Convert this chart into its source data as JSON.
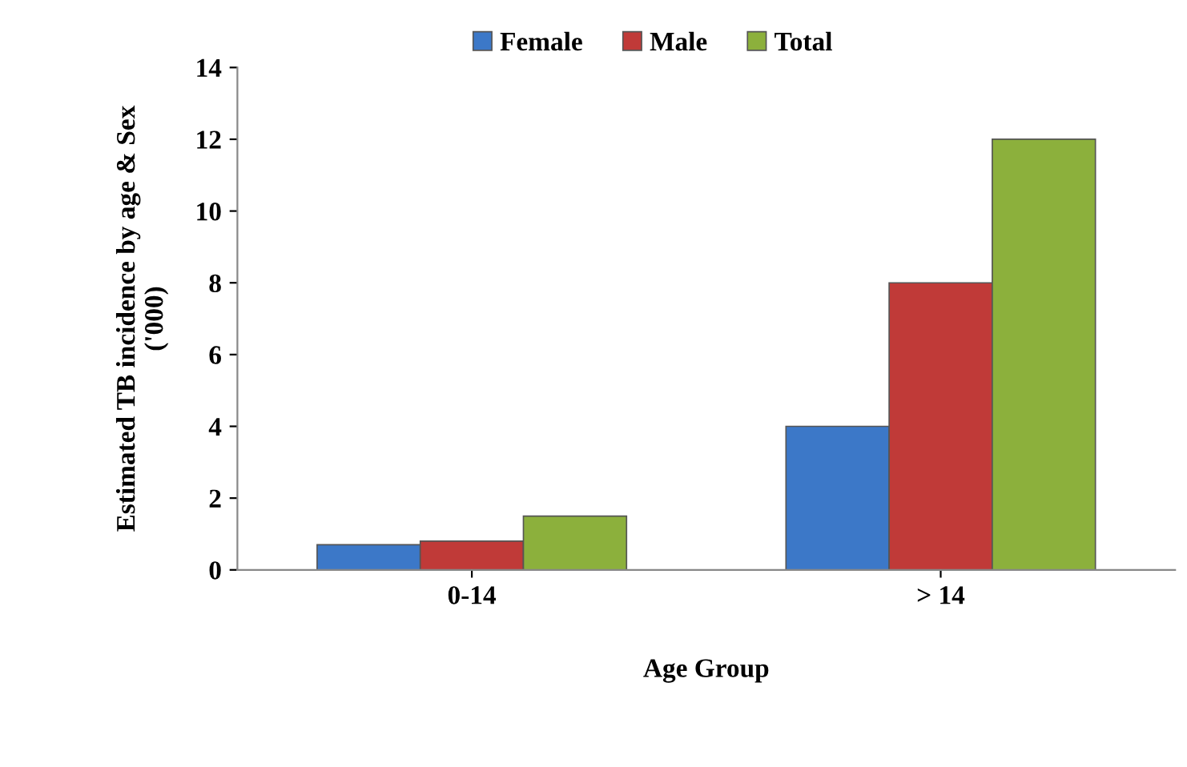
{
  "chart_data": {
    "type": "bar",
    "xlabel": "Age Group",
    "ylabel": "Estimated TB incidence by age & Sex\n('000)",
    "categories": [
      "0-14",
      "> 14"
    ],
    "series": [
      {
        "name": "Female",
        "color": "#3c78c8",
        "values": [
          0.7,
          4
        ]
      },
      {
        "name": "Male",
        "color": "#c03a38",
        "values": [
          0.8,
          8
        ]
      },
      {
        "name": "Total",
        "color": "#8cb03c",
        "values": [
          1.5,
          12
        ]
      }
    ],
    "ylim": [
      0,
      14
    ],
    "yticks": [
      0,
      2,
      4,
      6,
      8,
      10,
      12,
      14
    ],
    "grid": false,
    "legend": "top"
  }
}
